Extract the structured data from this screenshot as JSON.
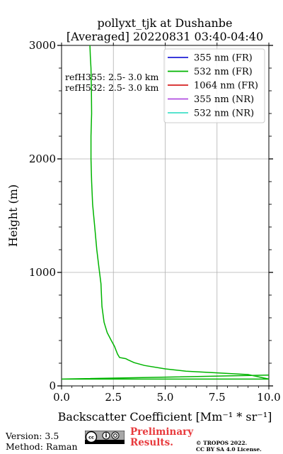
{
  "chart_data": {
    "type": "line",
    "title": [
      "pollyxt_tjk at Dushanbe",
      "[Averaged] 20220831 03:40-04:40"
    ],
    "xlabel": "Backscatter Coefficient [Mm⁻¹ * sr⁻¹]",
    "ylabel": "Height (m)",
    "xlim": [
      0,
      10
    ],
    "ylim": [
      0,
      3000
    ],
    "xticks": [
      0,
      2.5,
      5,
      7.5,
      10
    ],
    "xtick_labels": [
      "0.0",
      "2.5",
      "5.0",
      "7.5",
      "10.0"
    ],
    "yticks": [
      0,
      1000,
      2000,
      3000
    ],
    "ytick_labels": [
      "0",
      "1000",
      "2000",
      "3000"
    ],
    "grid": true,
    "legend_position": "top-right",
    "annotations": [
      "refH355:  2.5- 3.0 km",
      "refH532:  2.5- 3.0 km"
    ],
    "series": [
      {
        "name": "355 nm (FR)",
        "color": "#1f1fd6",
        "x": [],
        "y": []
      },
      {
        "name": "532 nm (FR)",
        "color": "#00b400",
        "x": [
          10.0,
          0.0,
          0.0,
          10.0,
          9.0,
          7.5,
          6.0,
          5.0,
          4.0,
          3.5,
          3.2,
          3.1,
          2.8,
          2.7,
          2.55,
          2.4,
          2.2,
          2.05,
          1.95,
          1.9,
          1.8,
          1.7,
          1.6,
          1.5,
          1.45,
          1.42,
          1.42,
          1.45,
          1.44,
          1.43,
          1.42,
          1.39,
          1.38,
          1.37
        ],
        "y": [
          95,
          60,
          60,
          60,
          100,
          115,
          130,
          150,
          180,
          205,
          230,
          240,
          250,
          280,
          350,
          400,
          470,
          560,
          700,
          900,
          1050,
          1200,
          1400,
          1600,
          1800,
          2000,
          2200,
          2400,
          2600,
          2700,
          2800,
          2900,
          2950,
          3000
        ]
      },
      {
        "name": "1064 nm (FR)",
        "color": "#d62020",
        "x": [],
        "y": []
      },
      {
        "name": "355 nm (NR)",
        "color": "#b04ee0",
        "x": [],
        "y": []
      },
      {
        "name": "532 nm (NR)",
        "color": "#40e0c8",
        "x": [],
        "y": []
      }
    ]
  },
  "footer": {
    "version": "Version: 3.5",
    "method": "Method: Raman",
    "preliminary": [
      "Preliminary",
      "Results."
    ],
    "copyright": [
      "© TROPOS 2022.",
      "CC BY SA 4.0 License."
    ]
  }
}
